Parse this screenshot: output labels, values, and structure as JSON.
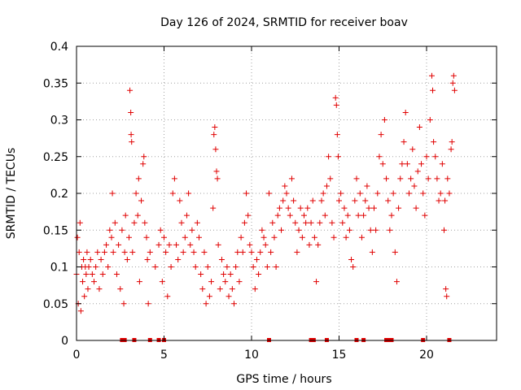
{
  "chart_data": {
    "type": "scatter",
    "title": "Day 126 of 2024, SRMTID for receiver boav",
    "xlabel": "GPS time / hours",
    "ylabel": "SRMTID / TECUs",
    "xlim": [
      0,
      24
    ],
    "ylim": [
      0,
      0.4
    ],
    "grid": true,
    "marker": "plus",
    "color": "#e00000",
    "x_ticks": [
      {
        "value": 0,
        "label": "0"
      },
      {
        "value": 5,
        "label": "5"
      },
      {
        "value": 10,
        "label": "10"
      },
      {
        "value": 15,
        "label": "15"
      },
      {
        "value": 20,
        "label": "20"
      }
    ],
    "y_ticks": [
      {
        "value": 0,
        "label": "0"
      },
      {
        "value": 0.05,
        "label": "0.05"
      },
      {
        "value": 0.1,
        "label": "0.1"
      },
      {
        "value": 0.15,
        "label": "0.15"
      },
      {
        "value": 0.2,
        "label": "0.2"
      },
      {
        "value": 0.25,
        "label": "0.25"
      },
      {
        "value": 0.3,
        "label": "0.3"
      },
      {
        "value": 0.35,
        "label": "0.35"
      },
      {
        "value": 0.4,
        "label": "0.4"
      }
    ],
    "series": [
      {
        "name": "SRMTID",
        "points": [
          [
            0.0,
            0.09
          ],
          [
            0.05,
            0.14
          ],
          [
            0.1,
            0.05
          ],
          [
            0.15,
            0.12
          ],
          [
            0.2,
            0.16
          ],
          [
            0.25,
            0.04
          ],
          [
            0.3,
            0.1
          ],
          [
            0.35,
            0.08
          ],
          [
            0.4,
            0.11
          ],
          [
            0.45,
            0.06
          ],
          [
            0.5,
            0.1
          ],
          [
            0.55,
            0.09
          ],
          [
            0.6,
            0.12
          ],
          [
            0.65,
            0.07
          ],
          [
            0.7,
            0.1
          ],
          [
            0.8,
            0.11
          ],
          [
            0.9,
            0.09
          ],
          [
            1.0,
            0.08
          ],
          [
            1.1,
            0.1
          ],
          [
            1.2,
            0.12
          ],
          [
            1.3,
            0.07
          ],
          [
            1.4,
            0.11
          ],
          [
            1.5,
            0.09
          ],
          [
            1.6,
            0.12
          ],
          [
            1.7,
            0.13
          ],
          [
            1.8,
            0.1
          ],
          [
            1.9,
            0.15
          ],
          [
            2.0,
            0.14
          ],
          [
            2.05,
            0.2
          ],
          [
            2.1,
            0.12
          ],
          [
            2.2,
            0.16
          ],
          [
            2.3,
            0.09
          ],
          [
            2.4,
            0.13
          ],
          [
            2.5,
            0.07
          ],
          [
            2.6,
            0.15
          ],
          [
            2.7,
            0.05
          ],
          [
            2.75,
            0.12
          ],
          [
            2.8,
            0.17
          ],
          [
            2.9,
            0.11
          ],
          [
            3.0,
            0.14
          ],
          [
            3.05,
            0.34
          ],
          [
            3.1,
            0.31
          ],
          [
            3.12,
            0.28
          ],
          [
            3.15,
            0.27
          ],
          [
            3.2,
            0.12
          ],
          [
            3.3,
            0.16
          ],
          [
            3.4,
            0.2
          ],
          [
            3.5,
            0.17
          ],
          [
            3.55,
            0.22
          ],
          [
            3.6,
            0.08
          ],
          [
            3.7,
            0.19
          ],
          [
            3.8,
            0.24
          ],
          [
            3.85,
            0.25
          ],
          [
            3.9,
            0.16
          ],
          [
            4.0,
            0.14
          ],
          [
            4.05,
            0.11
          ],
          [
            4.1,
            0.05
          ],
          [
            4.2,
            0.12
          ],
          [
            4.5,
            0.1
          ],
          [
            4.7,
            0.13
          ],
          [
            4.8,
            0.15
          ],
          [
            4.9,
            0.08
          ],
          [
            5.0,
            0.14
          ],
          [
            5.1,
            0.12
          ],
          [
            5.2,
            0.06
          ],
          [
            5.3,
            0.13
          ],
          [
            5.4,
            0.1
          ],
          [
            5.5,
            0.2
          ],
          [
            5.6,
            0.22
          ],
          [
            5.7,
            0.13
          ],
          [
            5.8,
            0.11
          ],
          [
            5.9,
            0.19
          ],
          [
            6.0,
            0.16
          ],
          [
            6.1,
            0.12
          ],
          [
            6.2,
            0.14
          ],
          [
            6.3,
            0.17
          ],
          [
            6.4,
            0.2
          ],
          [
            6.5,
            0.13
          ],
          [
            6.6,
            0.15
          ],
          [
            6.7,
            0.12
          ],
          [
            6.8,
            0.1
          ],
          [
            6.9,
            0.16
          ],
          [
            7.0,
            0.14
          ],
          [
            7.1,
            0.09
          ],
          [
            7.2,
            0.07
          ],
          [
            7.3,
            0.12
          ],
          [
            7.4,
            0.05
          ],
          [
            7.5,
            0.1
          ],
          [
            7.6,
            0.06
          ],
          [
            7.7,
            0.08
          ],
          [
            7.8,
            0.18
          ],
          [
            7.85,
            0.28
          ],
          [
            7.9,
            0.29
          ],
          [
            7.95,
            0.26
          ],
          [
            8.0,
            0.23
          ],
          [
            8.05,
            0.22
          ],
          [
            8.1,
            0.13
          ],
          [
            8.2,
            0.07
          ],
          [
            8.3,
            0.11
          ],
          [
            8.4,
            0.09
          ],
          [
            8.5,
            0.08
          ],
          [
            8.6,
            0.1
          ],
          [
            8.7,
            0.06
          ],
          [
            8.8,
            0.09
          ],
          [
            8.9,
            0.07
          ],
          [
            9.0,
            0.05
          ],
          [
            9.1,
            0.1
          ],
          [
            9.2,
            0.12
          ],
          [
            9.3,
            0.08
          ],
          [
            9.4,
            0.14
          ],
          [
            9.5,
            0.12
          ],
          [
            9.6,
            0.16
          ],
          [
            9.7,
            0.2
          ],
          [
            9.8,
            0.17
          ],
          [
            9.9,
            0.13
          ],
          [
            10.0,
            0.12
          ],
          [
            10.1,
            0.1
          ],
          [
            10.2,
            0.07
          ],
          [
            10.3,
            0.11
          ],
          [
            10.4,
            0.09
          ],
          [
            10.5,
            0.12
          ],
          [
            10.6,
            0.15
          ],
          [
            10.7,
            0.14
          ],
          [
            10.8,
            0.13
          ],
          [
            10.9,
            0.1
          ],
          [
            11.0,
            0.2
          ],
          [
            11.1,
            0.12
          ],
          [
            11.2,
            0.16
          ],
          [
            11.3,
            0.14
          ],
          [
            11.4,
            0.1
          ],
          [
            11.5,
            0.17
          ],
          [
            11.6,
            0.18
          ],
          [
            11.7,
            0.15
          ],
          [
            11.8,
            0.19
          ],
          [
            11.9,
            0.21
          ],
          [
            12.0,
            0.2
          ],
          [
            12.1,
            0.18
          ],
          [
            12.2,
            0.17
          ],
          [
            12.3,
            0.22
          ],
          [
            12.4,
            0.19
          ],
          [
            12.5,
            0.16
          ],
          [
            12.6,
            0.12
          ],
          [
            12.7,
            0.15
          ],
          [
            12.8,
            0.18
          ],
          [
            12.9,
            0.14
          ],
          [
            13.0,
            0.17
          ],
          [
            13.1,
            0.16
          ],
          [
            13.2,
            0.18
          ],
          [
            13.3,
            0.13
          ],
          [
            13.4,
            0.16
          ],
          [
            13.5,
            0.19
          ],
          [
            13.6,
            0.14
          ],
          [
            13.7,
            0.08
          ],
          [
            13.8,
            0.13
          ],
          [
            13.9,
            0.16
          ],
          [
            14.0,
            0.19
          ],
          [
            14.1,
            0.2
          ],
          [
            14.2,
            0.17
          ],
          [
            14.3,
            0.21
          ],
          [
            14.4,
            0.25
          ],
          [
            14.5,
            0.22
          ],
          [
            14.6,
            0.16
          ],
          [
            14.7,
            0.14
          ],
          [
            14.8,
            0.33
          ],
          [
            14.85,
            0.32
          ],
          [
            14.9,
            0.28
          ],
          [
            14.95,
            0.25
          ],
          [
            15.0,
            0.19
          ],
          [
            15.1,
            0.2
          ],
          [
            15.2,
            0.16
          ],
          [
            15.3,
            0.18
          ],
          [
            15.4,
            0.14
          ],
          [
            15.5,
            0.17
          ],
          [
            15.6,
            0.15
          ],
          [
            15.7,
            0.11
          ],
          [
            15.8,
            0.1
          ],
          [
            15.9,
            0.19
          ],
          [
            16.0,
            0.22
          ],
          [
            16.1,
            0.17
          ],
          [
            16.2,
            0.2
          ],
          [
            16.3,
            0.14
          ],
          [
            16.4,
            0.17
          ],
          [
            16.5,
            0.19
          ],
          [
            16.6,
            0.21
          ],
          [
            16.7,
            0.18
          ],
          [
            16.8,
            0.15
          ],
          [
            16.9,
            0.12
          ],
          [
            17.0,
            0.18
          ],
          [
            17.1,
            0.15
          ],
          [
            17.2,
            0.2
          ],
          [
            17.3,
            0.25
          ],
          [
            17.4,
            0.28
          ],
          [
            17.5,
            0.24
          ],
          [
            17.6,
            0.3
          ],
          [
            17.7,
            0.22
          ],
          [
            17.8,
            0.19
          ],
          [
            17.9,
            0.15
          ],
          [
            18.0,
            0.17
          ],
          [
            18.1,
            0.2
          ],
          [
            18.2,
            0.12
          ],
          [
            18.3,
            0.08
          ],
          [
            18.4,
            0.18
          ],
          [
            18.5,
            0.22
          ],
          [
            18.6,
            0.24
          ],
          [
            18.7,
            0.27
          ],
          [
            18.8,
            0.31
          ],
          [
            18.9,
            0.24
          ],
          [
            19.0,
            0.2
          ],
          [
            19.1,
            0.22
          ],
          [
            19.2,
            0.26
          ],
          [
            19.3,
            0.21
          ],
          [
            19.4,
            0.18
          ],
          [
            19.5,
            0.23
          ],
          [
            19.6,
            0.29
          ],
          [
            19.7,
            0.24
          ],
          [
            19.8,
            0.2
          ],
          [
            19.9,
            0.17
          ],
          [
            20.0,
            0.25
          ],
          [
            20.1,
            0.22
          ],
          [
            20.2,
            0.3
          ],
          [
            20.3,
            0.36
          ],
          [
            20.35,
            0.34
          ],
          [
            20.4,
            0.27
          ],
          [
            20.5,
            0.25
          ],
          [
            20.6,
            0.22
          ],
          [
            20.7,
            0.19
          ],
          [
            20.8,
            0.2
          ],
          [
            20.9,
            0.24
          ],
          [
            21.0,
            0.15
          ],
          [
            21.05,
            0.19
          ],
          [
            21.1,
            0.07
          ],
          [
            21.15,
            0.06
          ],
          [
            21.2,
            0.22
          ],
          [
            21.3,
            0.2
          ],
          [
            21.4,
            0.26
          ],
          [
            21.45,
            0.27
          ],
          [
            21.5,
            0.35
          ],
          [
            21.55,
            0.36
          ],
          [
            21.6,
            0.34
          ]
        ]
      }
    ],
    "bottom_markers_x": [
      2.6,
      2.75,
      3.3,
      4.2,
      4.7,
      5.0,
      11.0,
      13.4,
      13.55,
      14.3,
      16.0,
      16.4,
      17.7,
      17.85,
      18.0,
      19.8,
      21.3
    ]
  }
}
